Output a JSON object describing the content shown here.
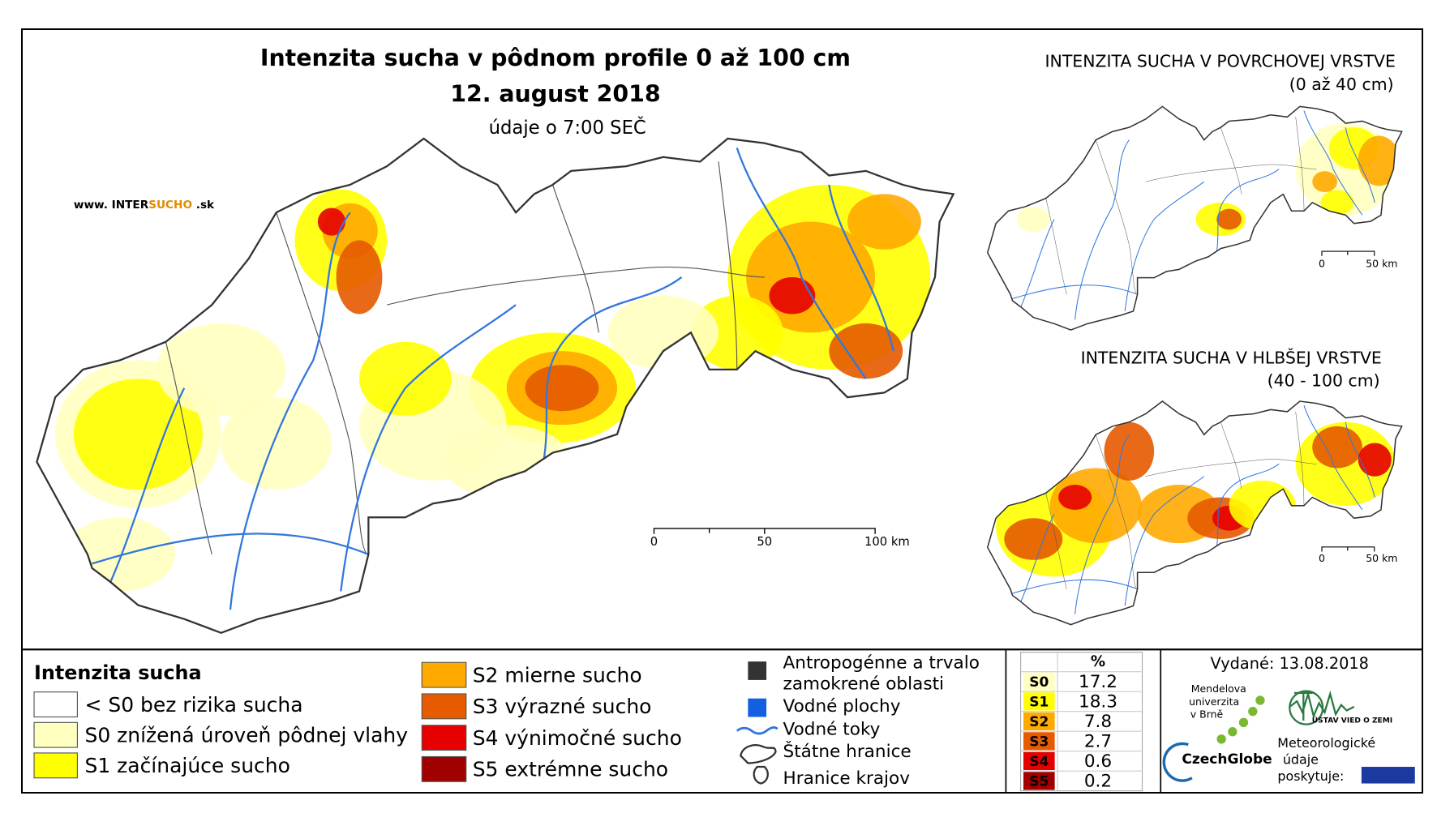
{
  "main_map": {
    "title": "Intenzita sucha v pôdnom profile 0 až 100 cm",
    "date": "12. august 2018",
    "note": "údaje o 7:00 SEČ",
    "website": [
      "www. INTER",
      "SUCHO",
      " .sk"
    ],
    "scale": [
      "0",
      "50",
      "100 km"
    ]
  },
  "surface_map": {
    "title": "INTENZITA SUCHA V POVRCHOVEJ VRSTVE",
    "subtitle": "(0 až 40 cm)",
    "scale": [
      "0",
      "50 km"
    ]
  },
  "deep_map": {
    "title": "INTENZITA SUCHA V HLBŠEJ VRSTVE",
    "subtitle": "(40 - 100 cm)",
    "scale": [
      "0",
      "50 km"
    ]
  },
  "legend": {
    "title": "Intenzita sucha",
    "items": [
      {
        "label": "< S0 bez rizika sucha",
        "color": "#ffffff"
      },
      {
        "label": "S0 znížená úroveň pôdnej vlahy",
        "color": "#ffffc0"
      },
      {
        "label": "S1 začínajúce sucho",
        "color": "#ffff00"
      },
      {
        "label": "S2 mierne sucho",
        "color": "#ffaa00"
      },
      {
        "label": "S3 výrazné sucho",
        "color": "#e65a00"
      },
      {
        "label": "S4 výnimočné sucho",
        "color": "#e60000"
      },
      {
        "label": "S5 extrémne sucho",
        "color": "#a00000"
      }
    ]
  },
  "layers": [
    {
      "label": [
        "Antropogénne a trvalo",
        "zamokrené oblasti"
      ]
    },
    {
      "label": [
        "Vodné plochy"
      ]
    },
    {
      "label": [
        "Vodné toky"
      ]
    },
    {
      "label": [
        "Štátne hranice"
      ]
    },
    {
      "label": [
        "Hranice krajov"
      ]
    }
  ],
  "stats": {
    "header": "%",
    "rows": [
      {
        "class": "S0",
        "percent": 17.2
      },
      {
        "class": "S1",
        "percent": 18.3
      },
      {
        "class": "S2",
        "percent": 7.8
      },
      {
        "class": "S3",
        "percent": 2.7
      },
      {
        "class": "S4",
        "percent": 0.6
      },
      {
        "class": "S5",
        "percent": 0.2
      }
    ]
  },
  "footer": {
    "issued": "Vydané: 13.08.2018",
    "mendel": [
      "Mendelova",
      "univerzita",
      "v Brně"
    ],
    "czechglobe": "CzechGlobe",
    "uvz": "ÚSTAV VIED O ZEMI",
    "meteo": [
      "Meteorologické",
      "údaje",
      "poskytuje:"
    ]
  }
}
